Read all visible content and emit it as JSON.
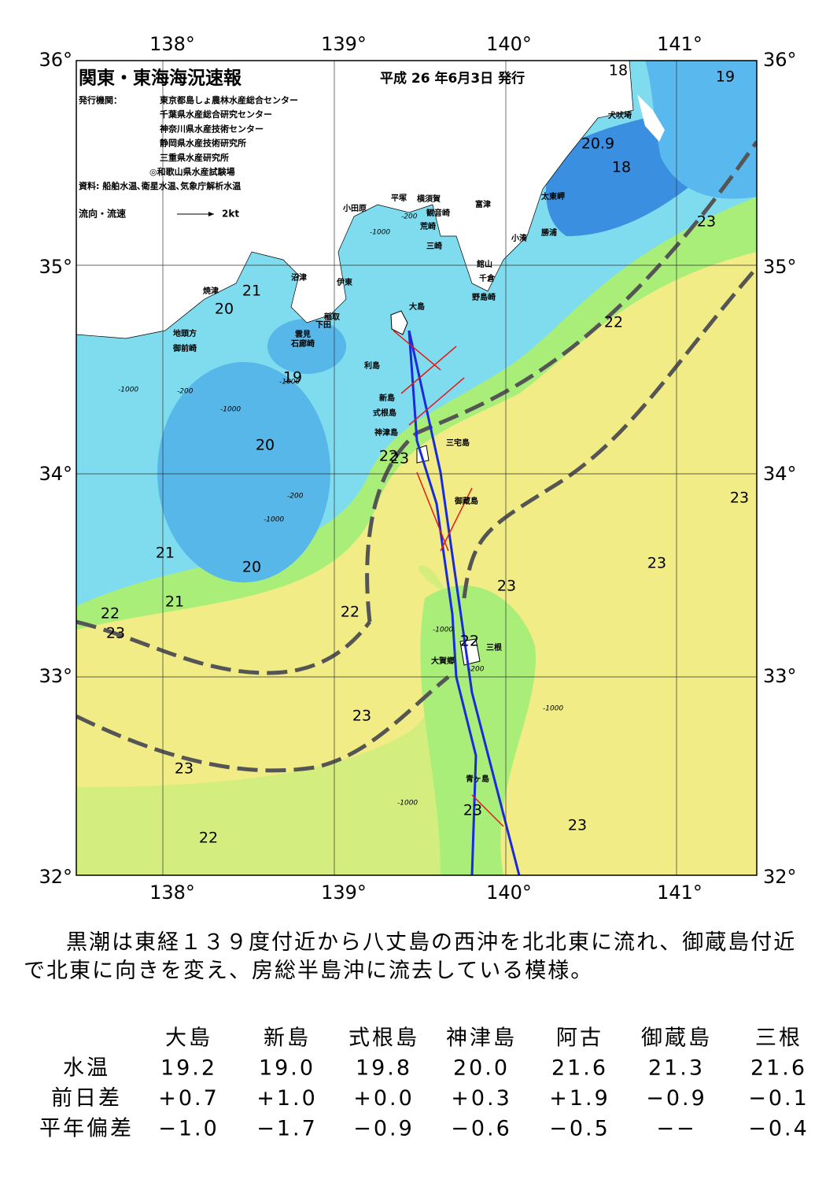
{
  "header": {
    "title": "関東・東海海況速報",
    "date": "平成 26 年6月3日 発行",
    "issuer_label": "発行機関：",
    "agencies": [
      "東京都島しょ農林水産総合センター",
      "千葉県水産総合研究センター",
      "神奈川県水産技術センター",
      "静岡県水産技術研究所",
      "三重県水産研究所",
      "◎和歌山県水産試験場"
    ],
    "source": "資料: 船舶水温､衛星水温､気象庁解析水温",
    "legend_label": "流向・流速",
    "legend_speed": "2kt"
  },
  "map": {
    "lon_labels": [
      "138°",
      "139°",
      "140°",
      "141°"
    ],
    "lat_labels": [
      "36°",
      "35°",
      "34°",
      "33°",
      "32°"
    ],
    "places": [
      "犬吠埼",
      "太東岬",
      "勝浦",
      "小湊",
      "富津",
      "館山",
      "千倉",
      "野島崎",
      "横須賀",
      "観音崎",
      "荒崎",
      "三崎",
      "平塚",
      "小田原",
      "沼津",
      "伊東",
      "焼津",
      "稲取",
      "下田",
      "雲見",
      "石廊崎",
      "地頭方",
      "御前崎",
      "大島",
      "利島",
      "新島",
      "式根島",
      "神津島",
      "三宅島",
      "御蔵島",
      "三根",
      "大賀郷",
      "青ヶ島"
    ],
    "temperature_labels": [
      "18",
      "19",
      "20.9",
      "18",
      "23",
      "22",
      "21",
      "20",
      "19",
      "20",
      "23",
      "21",
      "20",
      "23",
      "23",
      "21",
      "22",
      "23",
      "22",
      "22",
      "23",
      "23",
      "23",
      "22",
      "22",
      "23",
      "23"
    ],
    "depth_labels": [
      "-1000",
      "-200",
      "-1000",
      "-200",
      "-1000",
      "-200",
      "-1000",
      "-1000",
      "-1000",
      "-200",
      "-1000",
      "-1000"
    ]
  },
  "description": "黒潮は東経１３９度付近から八丈島の西沖を北北東に流れ、御蔵島付近で北東に向きを変え、房総半島沖に流去している模様。",
  "table": {
    "columns": [
      "大島",
      "新島",
      "式根島",
      "神津島",
      "阿古",
      "御蔵島",
      "三根"
    ],
    "rows": [
      {
        "label": "水温",
        "cells": [
          "19.2",
          "19.0",
          "19.8",
          "20.0",
          "21.6",
          "21.3",
          "21.6"
        ]
      },
      {
        "label": "前日差",
        "cells": [
          "+0.7",
          "+1.0",
          "+0.0",
          "+0.3",
          "+1.9",
          "−0.9",
          "−0.1"
        ]
      },
      {
        "label": "平年偏差",
        "cells": [
          "−1.0",
          "−1.7",
          "−0.9",
          "−0.6",
          "−0.5",
          "−−",
          "−0.4"
        ]
      }
    ]
  }
}
